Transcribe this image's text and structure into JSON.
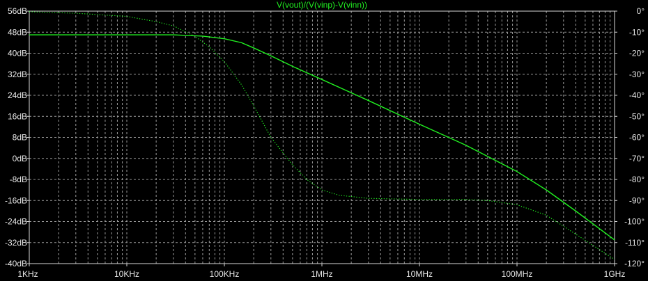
{
  "chart_data": {
    "type": "line",
    "title": "V(vout)/(V(vinp)-V(vinn))",
    "x_scale": "log",
    "xlim": [
      1000,
      1000000000
    ],
    "x_ticks": [
      1000,
      10000,
      100000,
      1000000,
      10000000,
      100000000,
      1000000000
    ],
    "x_tick_labels": [
      "1KHz",
      "10KHz",
      "100KHz",
      "1MHz",
      "10MHz",
      "100MHz",
      "1GHz"
    ],
    "left_axis": {
      "unit": "dB",
      "ylim": [
        -40,
        56
      ],
      "ticks": [
        56,
        48,
        40,
        32,
        24,
        16,
        8,
        0,
        -8,
        -16,
        -24,
        -32,
        -40
      ],
      "tick_labels": [
        "56dB",
        "48dB",
        "40dB",
        "32dB",
        "24dB",
        "16dB",
        "8dB",
        "0dB",
        "-8dB",
        "-16dB",
        "-24dB",
        "-32dB",
        "-40dB"
      ]
    },
    "right_axis": {
      "unit": "degrees",
      "ylim": [
        -120,
        0
      ],
      "ticks": [
        0,
        -10,
        -20,
        -30,
        -40,
        -50,
        -60,
        -70,
        -80,
        -90,
        -100,
        -110,
        -120
      ],
      "tick_labels": [
        "0°",
        "-10°",
        "-20°",
        "-30°",
        "-40°",
        "-50°",
        "-60°",
        "-70°",
        "-80°",
        "-90°",
        "-100°",
        "-110°",
        "-120°"
      ]
    },
    "grid": true,
    "series": [
      {
        "style": "solid",
        "axis": "left",
        "color": "#21f021",
        "x": [
          1000,
          10000,
          30000,
          60000,
          100000,
          150000,
          200000,
          300000,
          500000,
          1000000,
          3000000,
          10000000,
          30000000,
          100000000,
          200000000,
          400000000,
          1000000000
        ],
        "y": [
          47,
          47,
          47,
          46.5,
          45.5,
          44,
          42,
          39,
          35,
          30,
          22,
          13,
          5,
          -5,
          -12,
          -20,
          -31
        ]
      },
      {
        "style": "dotted",
        "axis": "right",
        "color": "#21f021",
        "x": [
          1000,
          3000,
          10000,
          20000,
          30000,
          50000,
          70000,
          100000,
          150000,
          200000,
          300000,
          500000,
          700000,
          1000000,
          1500000,
          3000000,
          10000000,
          30000000,
          50000000,
          100000000,
          200000000,
          400000000,
          1000000000
        ],
        "y": [
          -0.3,
          -1,
          -2.5,
          -5,
          -7,
          -12,
          -17,
          -24,
          -35,
          -45,
          -60,
          -73,
          -80,
          -85,
          -87.5,
          -89,
          -89.5,
          -89.5,
          -90,
          -92,
          -97,
          -106,
          -118
        ]
      }
    ]
  }
}
